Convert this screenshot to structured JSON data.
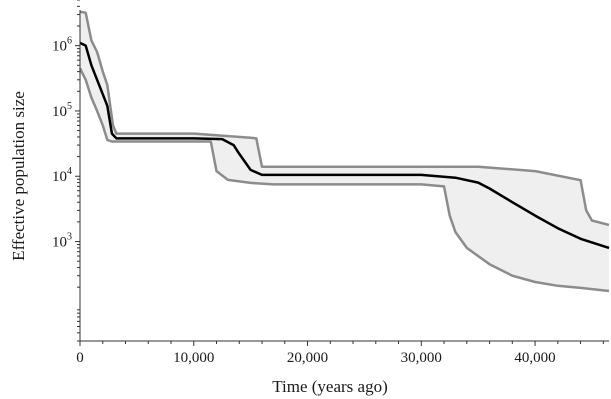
{
  "chart_data": {
    "type": "area",
    "xlabel": "Time (years ago)",
    "ylabel": "Effective population size",
    "x_scale": "linear",
    "y_scale": "log",
    "xlim": [
      0,
      46500
    ],
    "ylim": [
      30,
      5000000
    ],
    "x_ticks": [
      {
        "value": 0,
        "label": "0"
      },
      {
        "value": 10000,
        "label": "10,000"
      },
      {
        "value": 20000,
        "label": "20,000"
      },
      {
        "value": 30000,
        "label": "30,000"
      },
      {
        "value": 40000,
        "label": "40,000"
      }
    ],
    "y_ticks": [
      {
        "value": 1000,
        "base": "10",
        "exp": "3"
      },
      {
        "value": 10000,
        "base": "10",
        "exp": "4"
      },
      {
        "value": 100000,
        "base": "10",
        "exp": "5"
      },
      {
        "value": 1000000,
        "base": "10",
        "exp": "6"
      }
    ],
    "grid": false,
    "colors": {
      "median": "#000000",
      "interval": "#8c8c8c",
      "fill": "#efefef"
    },
    "series": [
      {
        "role": "upper",
        "x": [
          0,
          500,
          1000,
          1500,
          2000,
          2400,
          2900,
          3200,
          5000,
          10000,
          15000,
          15500,
          16000,
          20000,
          25000,
          30000,
          35000,
          40000,
          44000,
          44500,
          45000,
          46500
        ],
        "y": [
          3300000,
          3200000,
          1200000,
          800000,
          400000,
          250000,
          60000,
          45000,
          45000,
          45000,
          39000,
          38000,
          14000,
          14000,
          14000,
          14000,
          14000,
          12000,
          8700,
          3000,
          2100,
          1800
        ]
      },
      {
        "role": "median",
        "x": [
          0,
          500,
          1000,
          1500,
          2000,
          2400,
          2800,
          3200,
          5000,
          10000,
          12500,
          13500,
          14000,
          15000,
          16000,
          20000,
          25000,
          30000,
          33000,
          35000,
          36000,
          38000,
          40000,
          42000,
          44000,
          46500
        ],
        "y": [
          1100000,
          1000000,
          500000,
          300000,
          180000,
          120000,
          45000,
          38000,
          38000,
          38000,
          37000,
          30000,
          22000,
          12500,
          10500,
          10500,
          10500,
          10500,
          9500,
          8000,
          6500,
          4000,
          2500,
          1600,
          1100,
          800
        ]
      },
      {
        "role": "lower",
        "x": [
          0,
          500,
          1000,
          1500,
          2000,
          2400,
          2800,
          3200,
          5000,
          10000,
          11500,
          12000,
          13000,
          15000,
          17000,
          20000,
          25000,
          30000,
          32000,
          32500,
          33000,
          34000,
          36000,
          38000,
          40000,
          42000,
          44000,
          46500
        ],
        "y": [
          450000,
          300000,
          160000,
          100000,
          60000,
          36000,
          34000,
          34000,
          34000,
          34000,
          34000,
          12000,
          8800,
          7900,
          7500,
          7500,
          7500,
          7500,
          7000,
          2500,
          1400,
          800,
          450,
          300,
          240,
          210,
          195,
          175
        ]
      }
    ]
  }
}
